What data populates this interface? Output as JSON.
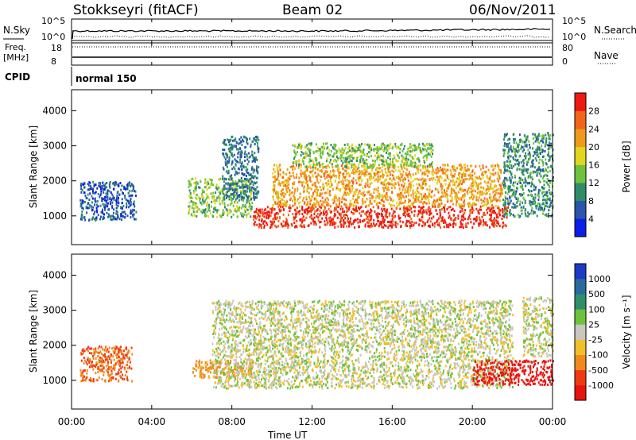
{
  "header": {
    "station": "Stokkseyri (fitACF)",
    "beam": "Beam 02",
    "date": "06/Nov/2011"
  },
  "summary": {
    "nsky_label": "N.Sky",
    "nsky_ticks": [
      "10^5",
      "10^0"
    ],
    "nsearch_label": "N.Search",
    "nsearch_ticks": [
      "10^5",
      "10^0"
    ],
    "freq_label": "Freq.",
    "freq_unit": "[MHz]",
    "freq_ticks": [
      "18",
      "8"
    ],
    "nave_label": "Nave",
    "nave_ticks": [
      "80",
      "0"
    ],
    "cpid_label": "CPID",
    "cpid_value": "normal 150"
  },
  "axes": {
    "ylabel": "Slant Range [km]",
    "xlabel": "Time UT",
    "yticks": [
      "1000",
      "2000",
      "3000",
      "4000"
    ],
    "xticks": [
      "00:00",
      "04:00",
      "08:00",
      "12:00",
      "16:00",
      "20:00",
      "00:00"
    ]
  },
  "power_scale": {
    "label": "Power [dB]",
    "ticks": [
      "4",
      "8",
      "12",
      "16",
      "20",
      "24",
      "28"
    ],
    "colors": [
      "#0a1ee8",
      "#2a55a8",
      "#2f8c6a",
      "#6fc23e",
      "#e2d61f",
      "#f09a1c",
      "#f2651a",
      "#ee1a10"
    ]
  },
  "velocity_scale": {
    "label": "Velocity [m s⁻¹]",
    "ticks": [
      "1000",
      "500",
      "100",
      "25",
      "-25",
      "-100",
      "-500",
      "-1000"
    ],
    "colors": [
      "#1c3ac6",
      "#2b6aa0",
      "#2f8f6a",
      "#6dc23c",
      "#c8c6c0",
      "#f0c02a",
      "#f08a1c",
      "#f03a12",
      "#e8140e"
    ],
    "ground_scatter_color": "#c8c6c0"
  },
  "chart_data": [
    {
      "type": "heatmap",
      "name": "power",
      "x_unit": "hours UT",
      "xlim": [
        0,
        24
      ],
      "y_unit": "km",
      "ylim": [
        180,
        4600
      ],
      "regions": [
        {
          "t0": 0.4,
          "t1": 3.2,
          "r0": 900,
          "r1": 2000,
          "level": 4
        },
        {
          "t0": 5.8,
          "t1": 9.0,
          "r0": 1000,
          "r1": 2100,
          "level": 12
        },
        {
          "t0": 7.5,
          "t1": 9.3,
          "r0": 1500,
          "r1": 3300,
          "level": 6
        },
        {
          "t0": 9.0,
          "t1": 21.8,
          "r0": 700,
          "r1": 1300,
          "level": 28
        },
        {
          "t0": 10.0,
          "t1": 21.5,
          "r0": 1300,
          "r1": 2500,
          "level": 20
        },
        {
          "t0": 11.0,
          "t1": 18.0,
          "r0": 2400,
          "r1": 3100,
          "level": 12
        },
        {
          "t0": 21.5,
          "t1": 24.0,
          "r0": 1000,
          "r1": 3400,
          "level": 8
        }
      ]
    },
    {
      "type": "heatmap",
      "name": "velocity",
      "x_unit": "hours UT",
      "xlim": [
        0,
        24
      ],
      "y_unit": "km",
      "ylim": [
        180,
        4600
      ],
      "regions": [
        {
          "t0": 0.4,
          "t1": 3.0,
          "r0": 1000,
          "r1": 2000,
          "velocity": -300
        },
        {
          "t0": 6.0,
          "t1": 9.0,
          "r0": 1100,
          "r1": 1600,
          "velocity": -100
        },
        {
          "t0": 7.0,
          "t1": 22.0,
          "r0": 800,
          "r1": 3300,
          "velocity": 0
        },
        {
          "t0": 20.0,
          "t1": 24.0,
          "r0": 900,
          "r1": 1600,
          "velocity": -800
        },
        {
          "t0": 22.5,
          "t1": 24.0,
          "r0": 1700,
          "r1": 3400,
          "velocity": 0
        }
      ]
    }
  ]
}
